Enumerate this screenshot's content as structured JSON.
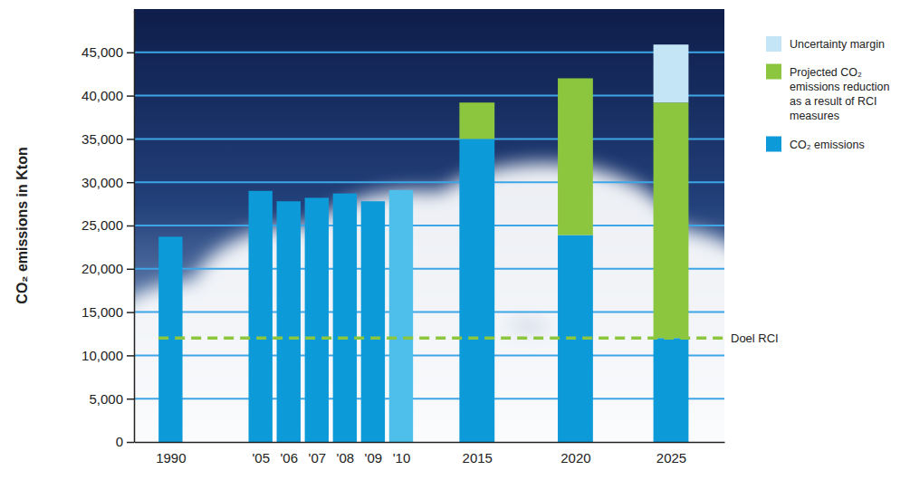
{
  "chart_data": {
    "type": "bar",
    "stacked": true,
    "y_label": "CO₂ emissions in Kton",
    "categories": [
      "1990",
      "'05",
      "'06",
      "'07",
      "'08",
      "'09",
      "'10",
      "2015",
      "2020",
      "2025"
    ],
    "series": [
      {
        "name": "CO₂ emissions",
        "color": "#0d9ad8",
        "colors": [
          "#0d9ad8",
          "#0d9ad8",
          "#0d9ad8",
          "#0d9ad8",
          "#0d9ad8",
          "#0d9ad8",
          "#4dbfea",
          "#0d9ad8",
          "#0d9ad8",
          "#0d9ad8"
        ],
        "values": [
          23700,
          29000,
          27800,
          28200,
          28700,
          27800,
          29100,
          35000,
          23900,
          12000
        ]
      },
      {
        "name": "Projected CO₂ emissions reduction as a result of RCI measures",
        "color": "#8cc63f",
        "values": [
          null,
          null,
          null,
          null,
          null,
          null,
          null,
          4200,
          18100,
          27200
        ]
      },
      {
        "name": "Uncertainty margin",
        "color": "#c4e5f6",
        "values": [
          null,
          null,
          null,
          null,
          null,
          null,
          null,
          null,
          null,
          6700
        ]
      }
    ],
    "annotations": [
      {
        "text": "Doel RCI",
        "y": 12000
      }
    ],
    "ylim": [
      0,
      50000
    ],
    "yticks": [
      0,
      {
        "value": 5000,
        "label": "5,000"
      },
      {
        "value": 10000,
        "label": "10,000"
      },
      {
        "value": 15000,
        "label": "15,000"
      },
      {
        "value": 20000,
        "label": "20,000"
      },
      {
        "value": 25000,
        "label": "25,000"
      },
      {
        "value": 30000,
        "label": "30,000"
      },
      {
        "value": 35000,
        "label": "35,000"
      },
      {
        "value": 40000,
        "label": "40,000"
      },
      {
        "value": 45000,
        "label": "45,000"
      }
    ],
    "grid": true,
    "legend": "right"
  }
}
